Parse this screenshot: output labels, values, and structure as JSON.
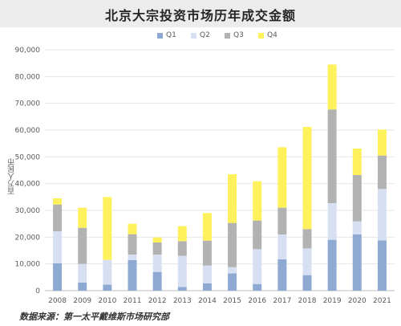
{
  "title": "北京大宗投资市场历年成交金额",
  "source_note": "数据来源：第一太平戴维斯市场研究部",
  "colors": {
    "Q1": "#8faad2",
    "Q2": "#d6e0f2",
    "Q3": "#b2b2b2",
    "Q4": "#fff15c",
    "grid": "#e6e6e6",
    "title_bg": "#ececec"
  },
  "chart_data": {
    "type": "bar",
    "stacked": true,
    "title": "北京大宗投资市场历年成交金额",
    "ylabel": "百万人民币",
    "xlabel": "",
    "ylim": [
      0,
      90000
    ],
    "yticks": [
      0,
      10000,
      20000,
      30000,
      40000,
      50000,
      60000,
      70000,
      80000,
      90000
    ],
    "ytick_labels": [
      "0",
      "10,000",
      "20,000",
      "30,000",
      "40,000",
      "50,000",
      "60,000",
      "70,000",
      "80,000",
      "90,000"
    ],
    "grid": true,
    "legend_position": "top",
    "categories": [
      "2008",
      "2009",
      "2010",
      "2011",
      "2012",
      "2013",
      "2014",
      "2015",
      "2016",
      "2017",
      "2018",
      "2019",
      "2020",
      "2021"
    ],
    "series": [
      {
        "name": "Q1",
        "values": [
          10200,
          3000,
          2300,
          11400,
          7000,
          1400,
          2700,
          6500,
          2500,
          11700,
          5800,
          19000,
          21000,
          18800
        ]
      },
      {
        "name": "Q2",
        "values": [
          12000,
          7000,
          9200,
          2100,
          6500,
          11600,
          6700,
          2300,
          13000,
          9300,
          10000,
          13700,
          4900,
          19200
        ]
      },
      {
        "name": "Q3",
        "values": [
          10000,
          13500,
          0,
          7600,
          4500,
          5500,
          9300,
          16500,
          10700,
          10000,
          7200,
          35000,
          17300,
          12500
        ]
      },
      {
        "name": "Q4",
        "values": [
          2300,
          7500,
          23500,
          3900,
          1900,
          5600,
          10300,
          18200,
          14700,
          22600,
          38200,
          16800,
          9900,
          9700
        ]
      }
    ]
  }
}
